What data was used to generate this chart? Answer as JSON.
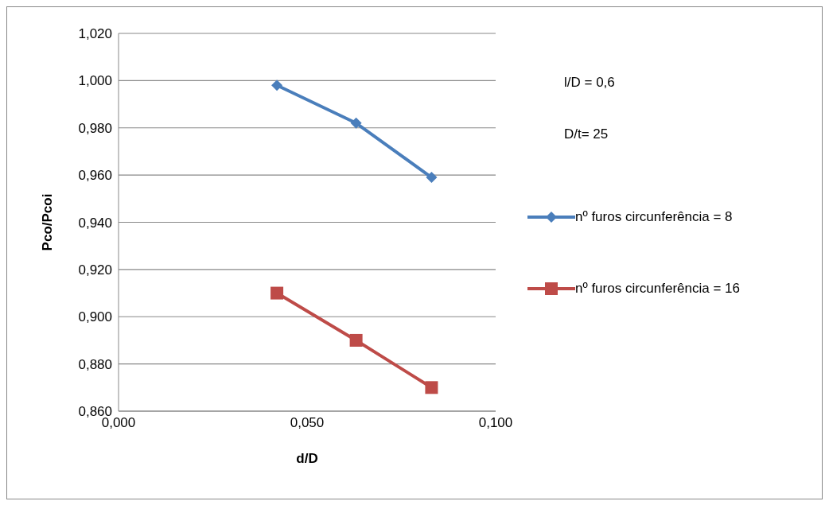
{
  "chart_data": {
    "type": "line",
    "xlabel": "d/D",
    "ylabel": "Pco/Pcoi",
    "annotations": [
      "l/D = 0,6",
      "D/t= 25"
    ],
    "x": [
      0.042,
      0.063,
      0.083
    ],
    "series": [
      {
        "name": "nº furos circunferência = 8",
        "color": "#4a7ebb",
        "values": [
          0.998,
          0.982,
          0.959
        ],
        "marker": "diamond"
      },
      {
        "name": "nº furos circunferência = 16",
        "color": "#be4b48",
        "values": [
          0.91,
          0.89,
          0.87
        ],
        "marker": "square"
      }
    ],
    "xlim": [
      0,
      0.1
    ],
    "xticks": [
      {
        "value": 0,
        "label": "0,000"
      },
      {
        "value": 0.05,
        "label": "0,050"
      },
      {
        "value": 0.1,
        "label": "0,100"
      }
    ],
    "ylim": [
      0.86,
      1.02
    ],
    "yticks": [
      {
        "value": 0.86,
        "label": "0,860"
      },
      {
        "value": 0.88,
        "label": "0,880"
      },
      {
        "value": 0.9,
        "label": "0,900"
      },
      {
        "value": 0.92,
        "label": "0,920"
      },
      {
        "value": 0.94,
        "label": "0,940"
      },
      {
        "value": 0.96,
        "label": "0,960"
      },
      {
        "value": 0.98,
        "label": "0,980"
      },
      {
        "value": 1.0,
        "label": "1,000"
      },
      {
        "value": 1.02,
        "label": "1,020"
      }
    ],
    "grid": "y",
    "legend": "right",
    "line_style": "solid"
  }
}
